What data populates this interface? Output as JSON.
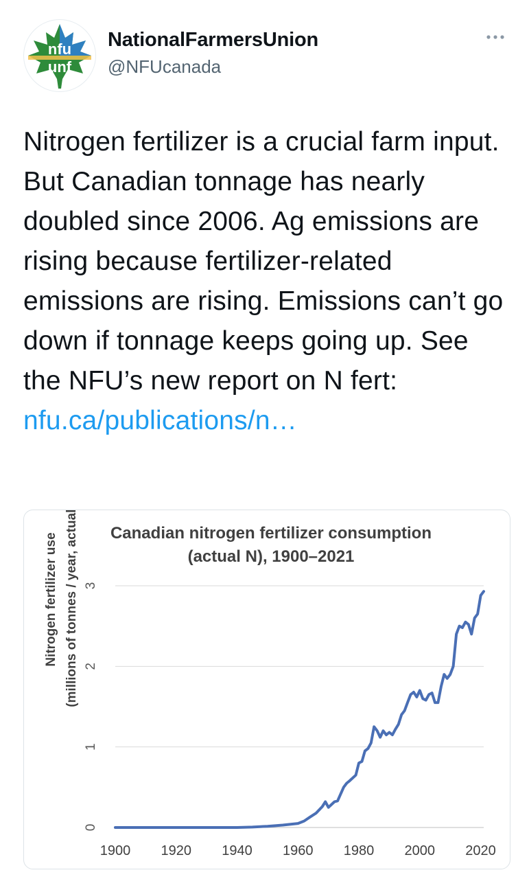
{
  "tweet": {
    "display_name": "NationalFarmersUnion",
    "handle": "@NFUcanada",
    "avatar_text_top": "nfu",
    "avatar_text_bottom": "unf",
    "more_icon": "more-dots-icon",
    "text": "Nitrogen fertilizer is a crucial farm input. But Canadian tonnage has nearly doubled since 2006. Ag emissions are rising because fertilizer-related emissions are rising. Emissions can’t go down if tonnage keeps going up. See the NFU’s new report on N fert: ",
    "link_text": "nfu.ca/publications/n…"
  },
  "colors": {
    "link": "#1d9bf0",
    "line": "#4a6fb5",
    "grid": "#d9d9d9",
    "avatar_green": "#2e8b3a",
    "avatar_blue": "#2f7ed8"
  },
  "chart_data": {
    "type": "line",
    "title": "Canadian nitrogen fertilizer consumption (actual N), 1900–2021",
    "title_line1": "Canadian nitrogen fertilizer consumption",
    "title_line2": "(actual N), 1900–2021",
    "xlabel": "",
    "ylabel": "Nitrogen fertilizer use (millions of tonnes / year, actual N)",
    "ylabel_line1": "Nitrogen fertilizer use",
    "ylabel_line2": "(millions of tonnes / year, actual N)",
    "xlim": [
      1900,
      2021
    ],
    "ylim": [
      0,
      3
    ],
    "xticks": [
      "1900",
      "1920",
      "1940",
      "1960",
      "1980",
      "2000",
      "2020"
    ],
    "yticks": [
      "0",
      "1",
      "2",
      "3"
    ],
    "grid": true,
    "series": [
      {
        "x": [
          1900,
          1910,
          1920,
          1930,
          1940,
          1945,
          1950,
          1955,
          1960,
          1962,
          1964,
          1966,
          1968,
          1969,
          1970,
          1972,
          1973,
          1975,
          1976,
          1977,
          1979,
          1980,
          1981,
          1982,
          1983,
          1984,
          1985,
          1986,
          1987,
          1988,
          1989,
          1990,
          1991,
          1992,
          1993,
          1994,
          1995,
          1996,
          1997,
          1998,
          1999,
          2000,
          2001,
          2002,
          2003,
          2004,
          2005,
          2006,
          2007,
          2008,
          2009,
          2010,
          2011,
          2012,
          2013,
          2014,
          2015,
          2016,
          2017,
          2018,
          2019,
          2020,
          2021
        ],
        "y": [
          0,
          0,
          0,
          0,
          0,
          0.005,
          0.015,
          0.03,
          0.05,
          0.08,
          0.13,
          0.18,
          0.26,
          0.32,
          0.25,
          0.32,
          0.33,
          0.5,
          0.55,
          0.58,
          0.65,
          0.8,
          0.82,
          0.95,
          0.98,
          1.05,
          1.25,
          1.2,
          1.12,
          1.2,
          1.15,
          1.18,
          1.15,
          1.22,
          1.28,
          1.4,
          1.45,
          1.55,
          1.65,
          1.68,
          1.62,
          1.7,
          1.6,
          1.58,
          1.65,
          1.67,
          1.55,
          1.55,
          1.75,
          1.9,
          1.85,
          1.9,
          2.0,
          2.4,
          2.5,
          2.48,
          2.55,
          2.52,
          2.4,
          2.6,
          2.65,
          2.88,
          2.93
        ]
      }
    ]
  }
}
